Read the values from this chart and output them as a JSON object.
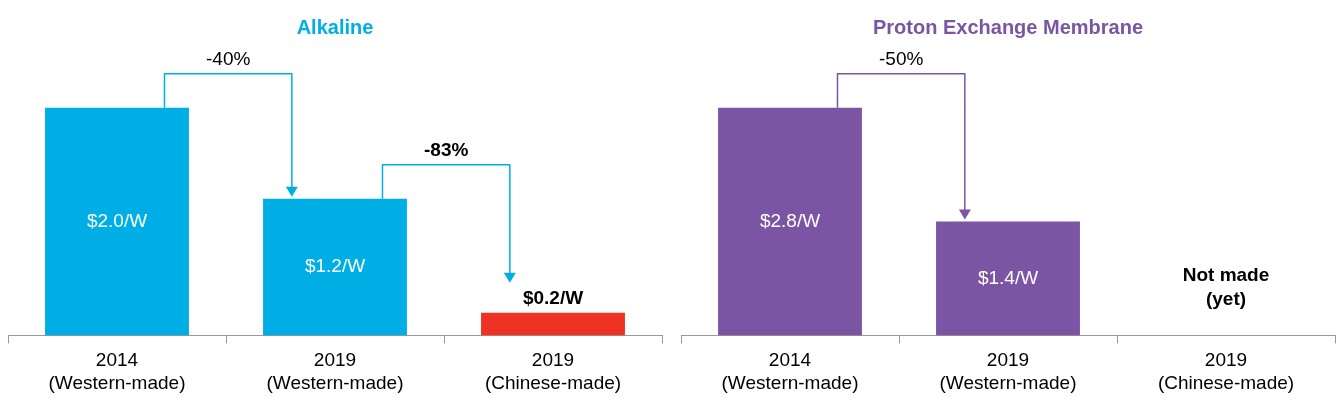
{
  "chart_data": [
    {
      "type": "bar",
      "title": "Alkaline",
      "categories": [
        "2014\n(Western-made)",
        "2019\n(Western-made)",
        "2019\n(Chinese-made)"
      ],
      "values": [
        2.0,
        1.2,
        0.2
      ],
      "colors": [
        "#00aee6",
        "#00aee6",
        "#ee3224"
      ],
      "value_labels": [
        "$2.0/W",
        "$1.2/W",
        "$0.2/W"
      ],
      "annotations": [
        "-40%",
        "-83%"
      ]
    },
    {
      "type": "bar",
      "title": "Proton Exchange Membrane",
      "categories": [
        "2014\n(Western-made)",
        "2019\n(Western-made)",
        "2019\n(Chinese-made)"
      ],
      "values": [
        2.8,
        1.4,
        null
      ],
      "colors": [
        "#7b55a3",
        "#7b55a3",
        "#7b55a3"
      ],
      "value_labels": [
        "$2.8/W",
        "$1.4/W",
        null
      ],
      "annotations": [
        "-50%",
        "Not made\n(yet)"
      ]
    }
  ]
}
